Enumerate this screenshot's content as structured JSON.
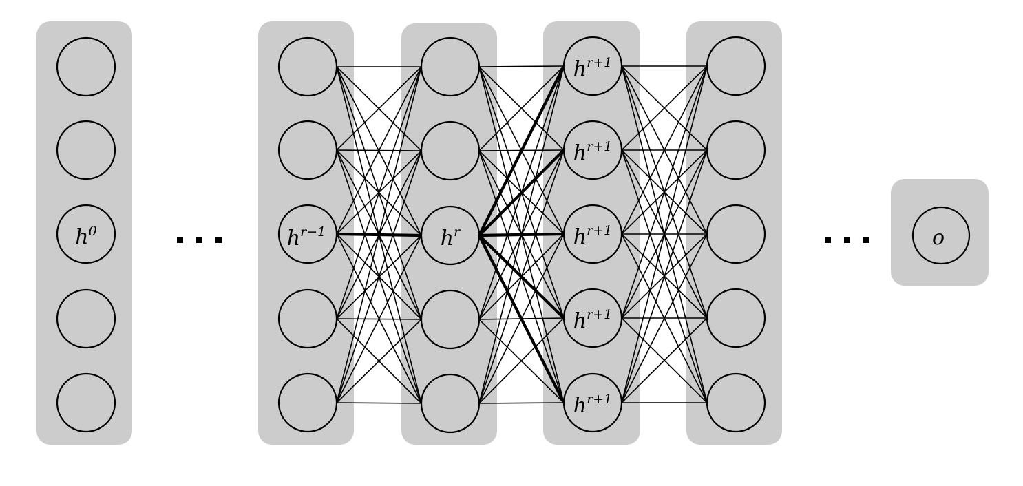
{
  "labels": {
    "input_layer": {
      "base": "h",
      "sup": "0"
    },
    "prev_layer": {
      "base": "h",
      "sup": "r−1"
    },
    "current_layer": {
      "base": "h",
      "sup": "r"
    },
    "next_layer": {
      "base": "h",
      "sup": "r+1"
    },
    "output": {
      "base": "o",
      "sup": ""
    }
  },
  "structure": {
    "nodes_per_layer": 5,
    "connectivity": "fully-connected",
    "highlighted_paths": [
      "h^{r-1} (middle) → h^r",
      "h^r → every h^{r+1}"
    ],
    "ellipsis_between": [
      "input_layer",
      "prev_layer"
    ],
    "ellipsis_before_output": true
  },
  "colors": {
    "layer_background": "#cccccc",
    "line": "#000000",
    "page_background": "#ffffff"
  }
}
